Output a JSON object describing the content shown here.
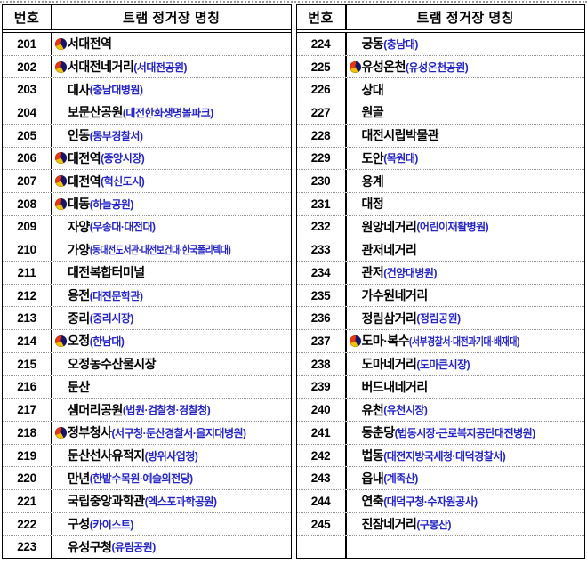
{
  "header": {
    "col_number": "번호",
    "col_name": "트램 정거장 명칭"
  },
  "icons": {
    "transfer": "sam-taegeuk-swirl-icon"
  },
  "colors": {
    "text": "#000000",
    "annotation_blue": "#2424c8",
    "border": "#000000",
    "row_divider": "#8f8f8f",
    "icon_red": "#e8380d",
    "icon_yellow": "#f2c200",
    "icon_navy": "#15156e"
  },
  "tables": [
    {
      "rows": [
        {
          "no": "201",
          "name": "서대전역",
          "annotation": "",
          "transfer": true
        },
        {
          "no": "202",
          "name": "서대전네거리",
          "annotation": "(서대전공원)",
          "transfer": true
        },
        {
          "no": "203",
          "name": "대사",
          "annotation": "(충남대병원)",
          "transfer": false
        },
        {
          "no": "204",
          "name": "보문산공원",
          "annotation": "(대전한화생명볼파크)",
          "transfer": false
        },
        {
          "no": "205",
          "name": "인동",
          "annotation": "(동부경찰서)",
          "transfer": false
        },
        {
          "no": "206",
          "name": "대전역",
          "annotation": "(중앙시장)",
          "transfer": true
        },
        {
          "no": "207",
          "name": "대전역",
          "annotation": "(혁신도시)",
          "transfer": true
        },
        {
          "no": "208",
          "name": "대동",
          "annotation": "(하늘공원)",
          "transfer": true
        },
        {
          "no": "209",
          "name": "자양",
          "annotation": "(우송대·대전대)",
          "transfer": false
        },
        {
          "no": "210",
          "name": "가양",
          "annotation": "(동대전도서관·대전보건대·한국폴리텍대)",
          "transfer": false,
          "condensed": true
        },
        {
          "no": "211",
          "name": "대전복합터미널",
          "annotation": "",
          "transfer": false
        },
        {
          "no": "212",
          "name": "용전",
          "annotation": "(대전문학관)",
          "transfer": false
        },
        {
          "no": "213",
          "name": "중리",
          "annotation": "(중리시장)",
          "transfer": false
        },
        {
          "no": "214",
          "name": "오정",
          "annotation": "(한남대)",
          "transfer": true
        },
        {
          "no": "215",
          "name": "오정농수산물시장",
          "annotation": "",
          "transfer": false
        },
        {
          "no": "216",
          "name": "둔산",
          "annotation": "",
          "transfer": false
        },
        {
          "no": "217",
          "name": "샘머리공원",
          "annotation": "(법원·검찰청·경찰청)",
          "transfer": false
        },
        {
          "no": "218",
          "name": "정부청사",
          "annotation": "(서구청·둔산경찰서·을지대병원)",
          "transfer": true
        },
        {
          "no": "219",
          "name": "둔산선사유적지",
          "annotation": "(방위사업청)",
          "transfer": false
        },
        {
          "no": "220",
          "name": "만년",
          "annotation": "(한밭수목원·예술의전당)",
          "transfer": false
        },
        {
          "no": "221",
          "name": "국립중앙과학관",
          "annotation": "(엑스포과학공원)",
          "transfer": false
        },
        {
          "no": "222",
          "name": "구성",
          "annotation": "(카이스트)",
          "transfer": false
        },
        {
          "no": "223",
          "name": "유성구청",
          "annotation": "(유림공원)",
          "transfer": false
        }
      ]
    },
    {
      "rows": [
        {
          "no": "224",
          "name": "궁동",
          "annotation": "(충남대)",
          "transfer": false
        },
        {
          "no": "225",
          "name": "유성온천",
          "annotation": "(유성온천공원)",
          "transfer": true
        },
        {
          "no": "226",
          "name": "상대",
          "annotation": "",
          "transfer": false
        },
        {
          "no": "227",
          "name": "원골",
          "annotation": "",
          "transfer": false
        },
        {
          "no": "228",
          "name": "대전시립박물관",
          "annotation": "",
          "transfer": false
        },
        {
          "no": "229",
          "name": "도안",
          "annotation": "(목원대)",
          "transfer": false
        },
        {
          "no": "230",
          "name": "용계",
          "annotation": "",
          "transfer": false
        },
        {
          "no": "231",
          "name": "대정",
          "annotation": "",
          "transfer": false
        },
        {
          "no": "232",
          "name": "원앙네거리",
          "annotation": "(어린이재활병원)",
          "transfer": false
        },
        {
          "no": "233",
          "name": "관저네거리",
          "annotation": "",
          "transfer": false
        },
        {
          "no": "234",
          "name": "관저",
          "annotation": "(건양대병원)",
          "transfer": false
        },
        {
          "no": "235",
          "name": "가수원네거리",
          "annotation": "",
          "transfer": false
        },
        {
          "no": "236",
          "name": "정림삼거리",
          "annotation": "(정림공원)",
          "transfer": false
        },
        {
          "no": "237",
          "name": "도마·복수",
          "annotation": "(서부경찰서·대전과기대·배재대)",
          "transfer": true,
          "condensed": true
        },
        {
          "no": "238",
          "name": "도마네거리",
          "annotation": "(도마큰시장)",
          "transfer": false
        },
        {
          "no": "239",
          "name": "버드내네거리",
          "annotation": "",
          "transfer": false
        },
        {
          "no": "240",
          "name": "유천",
          "annotation": "(유천시장)",
          "transfer": false
        },
        {
          "no": "241",
          "name": "동춘당",
          "annotation": "(법동시장·근로복지공단대전병원)",
          "transfer": false
        },
        {
          "no": "242",
          "name": "법동",
          "annotation": "(대전지방국세청·대덕경찰서)",
          "transfer": false
        },
        {
          "no": "243",
          "name": "읍내",
          "annotation": "(계족산)",
          "transfer": false
        },
        {
          "no": "244",
          "name": "연축",
          "annotation": "(대덕구청·수자원공사)",
          "transfer": false
        },
        {
          "no": "245",
          "name": "진잠네거리",
          "annotation": "(구봉산)",
          "transfer": false
        },
        {
          "no": "",
          "name": "",
          "annotation": "",
          "transfer": false
        }
      ]
    }
  ]
}
